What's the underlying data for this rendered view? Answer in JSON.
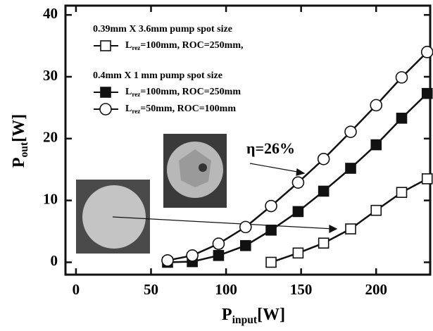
{
  "chart_data": {
    "type": "line",
    "x_label": [
      "P",
      "input",
      "[W]"
    ],
    "y_label": [
      "P",
      "out",
      "[W]"
    ],
    "annotation": "η=26%",
    "legend_groups": [
      "0.39mm X 3.6mm pump spot size",
      "0.4mm X 1 mm pump spot size"
    ],
    "xlim": [
      -7,
      236
    ],
    "ylim": [
      -2,
      41.5
    ],
    "xticks": [
      0,
      50,
      100,
      150,
      200
    ],
    "yticks": [
      0,
      10,
      20,
      30,
      40
    ],
    "series": [
      {
        "name": [
          "L",
          "rez",
          "=100mm, ROC=250mm,"
        ],
        "marker": "square-open",
        "color": "#111111",
        "x": [
          130,
          148,
          165,
          183,
          200,
          217,
          234
        ],
        "values": [
          0,
          1.5,
          3.1,
          5.4,
          8.4,
          11.3,
          13.5
        ]
      },
      {
        "name": [
          "L",
          "rez",
          "=100mm, ROC=250mm"
        ],
        "marker": "square-filled",
        "color": "#111111",
        "x": [
          61,
          77.5,
          95,
          113,
          130,
          148,
          165,
          183,
          200,
          217,
          234
        ],
        "values": [
          0,
          0.1,
          1.1,
          2.7,
          5.2,
          8.2,
          11.5,
          15.2,
          19,
          23.3,
          27.3
        ]
      },
      {
        "name": [
          "L",
          "rez",
          "=50mm, ROC=100mm"
        ],
        "marker": "circle-open",
        "color": "#111111",
        "x": [
          61,
          77.5,
          95,
          113,
          130,
          148,
          165,
          183,
          200,
          217,
          234
        ],
        "values": [
          0.3,
          1.1,
          3.0,
          5.7,
          9.1,
          12.9,
          16.7,
          21.1,
          25.4,
          29.9,
          34.0
        ]
      }
    ]
  }
}
